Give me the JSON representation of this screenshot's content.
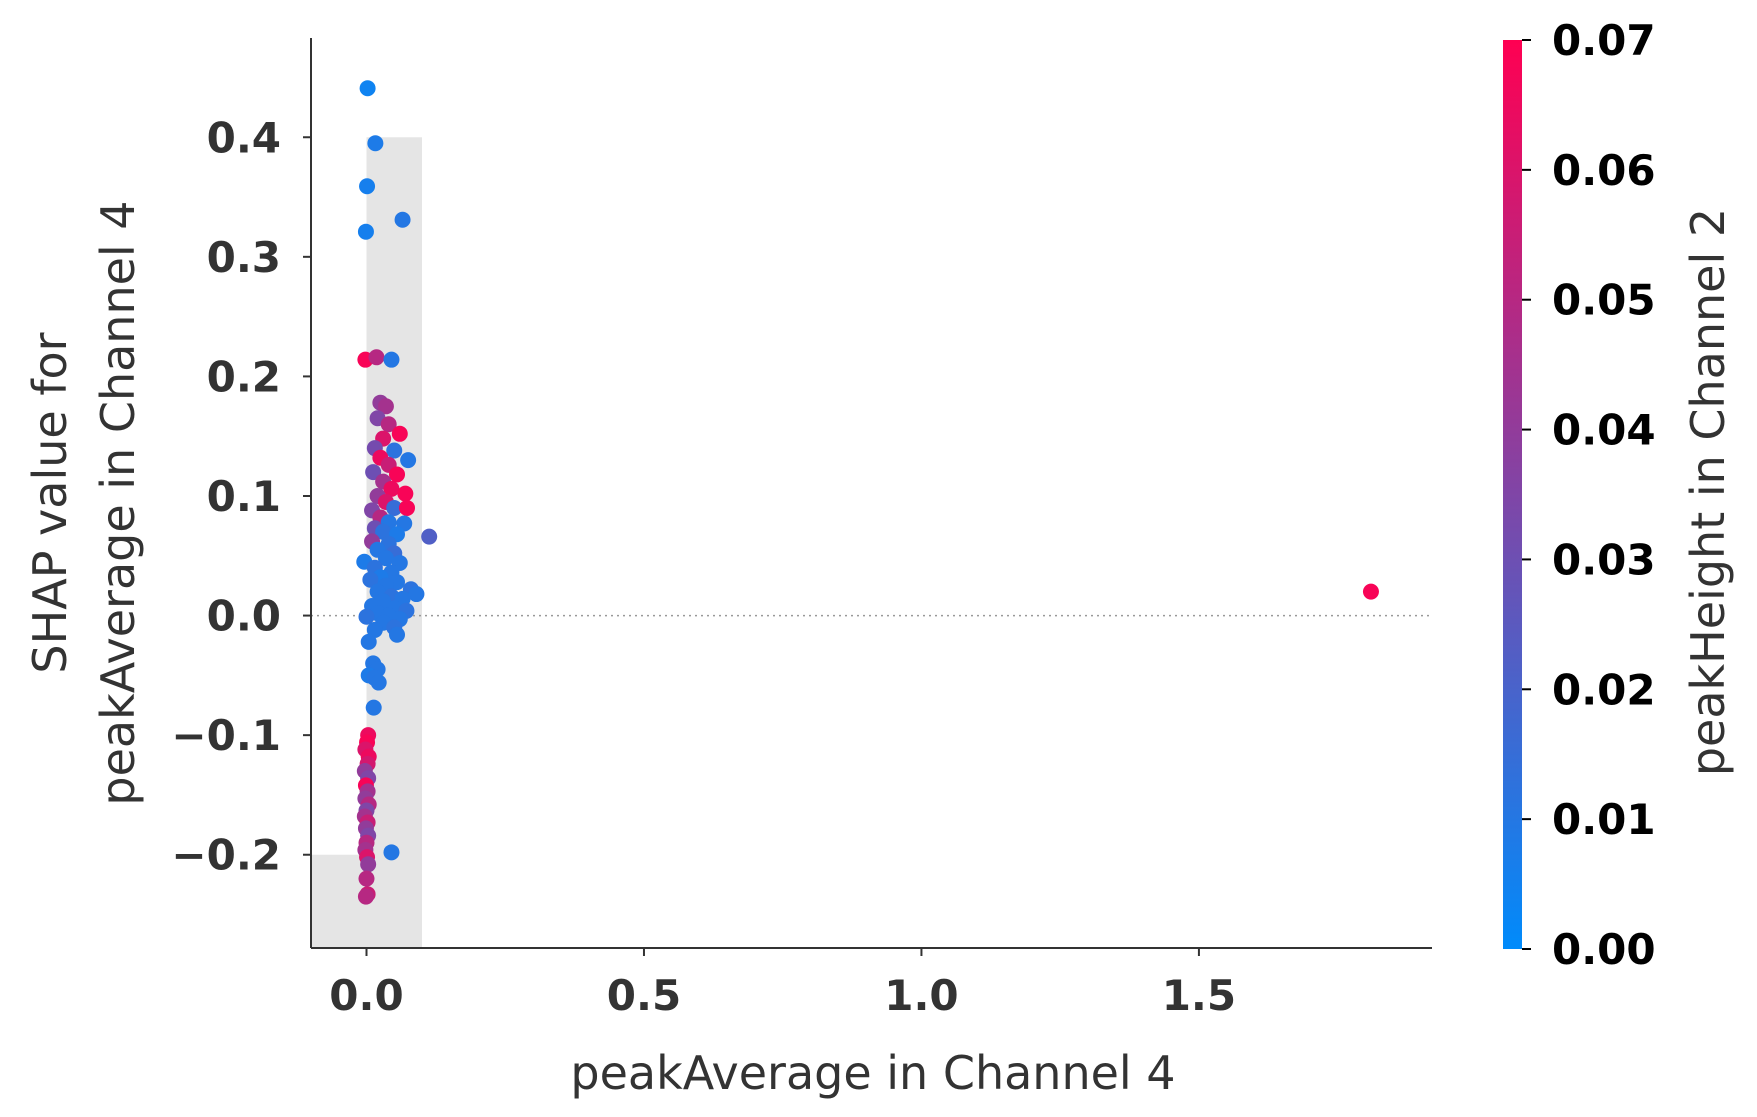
{
  "chart_data": {
    "type": "scatter",
    "xlabel": "peakAverage in Channel 4",
    "ylabel_lines": [
      "SHAP value for",
      "peakAverage in Channel 4"
    ],
    "xlim": [
      -0.1,
      1.92
    ],
    "ylim": [
      -0.278,
      0.483
    ],
    "xticks": [
      0.0,
      0.5,
      1.0,
      1.5
    ],
    "xtick_labels": [
      "0.0",
      "0.5",
      "1.0",
      "1.5"
    ],
    "yticks": [
      -0.2,
      -0.1,
      0.0,
      0.1,
      0.2,
      0.3,
      0.4
    ],
    "ytick_labels": [
      "−0.2",
      "−0.1",
      "0.0",
      "0.1",
      "0.2",
      "0.3",
      "0.4"
    ],
    "zero_line": 0.0,
    "histogram_bins": [
      {
        "x0": -0.1,
        "x1": 0.0,
        "y0": -0.278,
        "y1": -0.2
      },
      {
        "x0": 0.0,
        "x1": 0.1,
        "y0": -0.278,
        "y1": 0.4
      }
    ],
    "colorbar": {
      "label": "peakHeight in Channel 2",
      "range": [
        0.0,
        0.07
      ],
      "ticks": [
        0.0,
        0.01,
        0.02,
        0.03,
        0.04,
        0.05,
        0.06,
        0.07
      ],
      "tick_labels": [
        "0.00",
        "0.01",
        "0.02",
        "0.03",
        "0.04",
        "0.05",
        "0.06",
        "0.07"
      ],
      "color_low": "#008bfb",
      "color_high": "#ff0052"
    },
    "points": [
      {
        "x": 0.002,
        "y": 0.441,
        "c": 0.004
      },
      {
        "x": 0.016,
        "y": 0.395,
        "c": 0.008
      },
      {
        "x": 0.001,
        "y": 0.359,
        "c": 0.006
      },
      {
        "x": -0.001,
        "y": 0.321,
        "c": 0.006
      },
      {
        "x": 0.065,
        "y": 0.331,
        "c": 0.01
      },
      {
        "x": -0.002,
        "y": 0.214,
        "c": 0.068
      },
      {
        "x": 0.018,
        "y": 0.216,
        "c": 0.05
      },
      {
        "x": 0.045,
        "y": 0.214,
        "c": 0.01
      },
      {
        "x": 0.025,
        "y": 0.178,
        "c": 0.04
      },
      {
        "x": 0.035,
        "y": 0.175,
        "c": 0.045
      },
      {
        "x": 0.02,
        "y": 0.165,
        "c": 0.035
      },
      {
        "x": 0.04,
        "y": 0.16,
        "c": 0.05
      },
      {
        "x": 0.06,
        "y": 0.152,
        "c": 0.068
      },
      {
        "x": 0.03,
        "y": 0.148,
        "c": 0.06
      },
      {
        "x": 0.015,
        "y": 0.14,
        "c": 0.032
      },
      {
        "x": 0.05,
        "y": 0.138,
        "c": 0.012
      },
      {
        "x": 0.025,
        "y": 0.132,
        "c": 0.065
      },
      {
        "x": 0.075,
        "y": 0.13,
        "c": 0.01
      },
      {
        "x": 0.04,
        "y": 0.126,
        "c": 0.055
      },
      {
        "x": 0.012,
        "y": 0.12,
        "c": 0.03
      },
      {
        "x": 0.055,
        "y": 0.118,
        "c": 0.068
      },
      {
        "x": 0.03,
        "y": 0.112,
        "c": 0.045
      },
      {
        "x": 0.045,
        "y": 0.106,
        "c": 0.065
      },
      {
        "x": 0.07,
        "y": 0.102,
        "c": 0.068
      },
      {
        "x": 0.02,
        "y": 0.1,
        "c": 0.04
      },
      {
        "x": 0.035,
        "y": 0.095,
        "c": 0.06
      },
      {
        "x": 0.05,
        "y": 0.09,
        "c": 0.015
      },
      {
        "x": 0.073,
        "y": 0.09,
        "c": 0.068
      },
      {
        "x": 0.01,
        "y": 0.088,
        "c": 0.035
      },
      {
        "x": 0.025,
        "y": 0.082,
        "c": 0.05
      },
      {
        "x": 0.04,
        "y": 0.078,
        "c": 0.01
      },
      {
        "x": 0.068,
        "y": 0.077,
        "c": 0.01
      },
      {
        "x": 0.015,
        "y": 0.073,
        "c": 0.03
      },
      {
        "x": 0.03,
        "y": 0.07,
        "c": 0.012
      },
      {
        "x": 0.055,
        "y": 0.068,
        "c": 0.008
      },
      {
        "x": 0.113,
        "y": 0.066,
        "c": 0.022
      },
      {
        "x": 0.01,
        "y": 0.062,
        "c": 0.04
      },
      {
        "x": 0.04,
        "y": 0.06,
        "c": 0.012
      },
      {
        "x": 0.02,
        "y": 0.055,
        "c": 0.01
      },
      {
        "x": 0.05,
        "y": 0.052,
        "c": 0.015
      },
      {
        "x": 0.035,
        "y": 0.048,
        "c": 0.01
      },
      {
        "x": -0.004,
        "y": 0.045,
        "c": 0.008
      },
      {
        "x": 0.06,
        "y": 0.044,
        "c": 0.01
      },
      {
        "x": 0.015,
        "y": 0.04,
        "c": 0.012
      },
      {
        "x": 0.045,
        "y": 0.036,
        "c": 0.01
      },
      {
        "x": 0.025,
        "y": 0.032,
        "c": 0.008
      },
      {
        "x": 0.007,
        "y": 0.03,
        "c": 0.012
      },
      {
        "x": 0.055,
        "y": 0.028,
        "c": 0.01
      },
      {
        "x": 0.035,
        "y": 0.025,
        "c": 0.01
      },
      {
        "x": 0.08,
        "y": 0.022,
        "c": 0.012
      },
      {
        "x": 0.02,
        "y": 0.02,
        "c": 0.01
      },
      {
        "x": 0.09,
        "y": 0.018,
        "c": 0.01
      },
      {
        "x": 0.045,
        "y": 0.016,
        "c": 0.012
      },
      {
        "x": 0.065,
        "y": 0.014,
        "c": 0.01
      },
      {
        "x": 0.03,
        "y": 0.012,
        "c": 0.01
      },
      {
        "x": 0.01,
        "y": 0.008,
        "c": 0.01
      },
      {
        "x": 0.05,
        "y": 0.006,
        "c": 0.01
      },
      {
        "x": 0.072,
        "y": 0.004,
        "c": 0.012
      },
      {
        "x": 0.02,
        "y": 0.002,
        "c": 0.01
      },
      {
        "x": 0.04,
        "y": 0.0,
        "c": 0.01
      },
      {
        "x": 0.06,
        "y": -0.003,
        "c": 0.01
      },
      {
        "x": 0.0,
        "y": -0.001,
        "c": 0.012
      },
      {
        "x": 0.03,
        "y": -0.006,
        "c": 0.01
      },
      {
        "x": 0.05,
        "y": -0.01,
        "c": 0.012
      },
      {
        "x": 0.015,
        "y": -0.012,
        "c": 0.01
      },
      {
        "x": 0.055,
        "y": -0.016,
        "c": 0.01
      },
      {
        "x": 0.004,
        "y": -0.022,
        "c": 0.01
      },
      {
        "x": 0.012,
        "y": -0.04,
        "c": 0.01
      },
      {
        "x": 0.02,
        "y": -0.045,
        "c": 0.01
      },
      {
        "x": 0.004,
        "y": -0.05,
        "c": 0.008
      },
      {
        "x": 0.014,
        "y": -0.052,
        "c": 0.01
      },
      {
        "x": 0.022,
        "y": -0.056,
        "c": 0.01
      },
      {
        "x": 0.013,
        "y": -0.077,
        "c": 0.01
      },
      {
        "x": 0.003,
        "y": -0.1,
        "c": 0.065
      },
      {
        "x": 0.001,
        "y": -0.106,
        "c": 0.068
      },
      {
        "x": -0.002,
        "y": -0.112,
        "c": 0.06
      },
      {
        "x": 0.004,
        "y": -0.118,
        "c": 0.065
      },
      {
        "x": 0.002,
        "y": -0.124,
        "c": 0.058
      },
      {
        "x": -0.003,
        "y": -0.13,
        "c": 0.04
      },
      {
        "x": 0.003,
        "y": -0.136,
        "c": 0.035
      },
      {
        "x": -0.001,
        "y": -0.142,
        "c": 0.068
      },
      {
        "x": 0.002,
        "y": -0.147,
        "c": 0.045
      },
      {
        "x": -0.002,
        "y": -0.153,
        "c": 0.04
      },
      {
        "x": 0.004,
        "y": -0.158,
        "c": 0.05
      },
      {
        "x": 0.0,
        "y": -0.163,
        "c": 0.035
      },
      {
        "x": -0.003,
        "y": -0.168,
        "c": 0.045
      },
      {
        "x": 0.002,
        "y": -0.173,
        "c": 0.055
      },
      {
        "x": -0.001,
        "y": -0.178,
        "c": 0.04
      },
      {
        "x": 0.003,
        "y": -0.184,
        "c": 0.035
      },
      {
        "x": 0.0,
        "y": -0.19,
        "c": 0.05
      },
      {
        "x": -0.002,
        "y": -0.196,
        "c": 0.045
      },
      {
        "x": 0.001,
        "y": -0.202,
        "c": 0.06
      },
      {
        "x": 0.003,
        "y": -0.208,
        "c": 0.04
      },
      {
        "x": 0.0,
        "y": -0.22,
        "c": 0.05
      },
      {
        "x": 0.002,
        "y": -0.233,
        "c": 0.055
      },
      {
        "x": -0.001,
        "y": -0.235,
        "c": 0.05
      },
      {
        "x": 0.045,
        "y": -0.198,
        "c": 0.01
      },
      {
        "x": 1.81,
        "y": 0.02,
        "c": 0.068
      }
    ]
  }
}
